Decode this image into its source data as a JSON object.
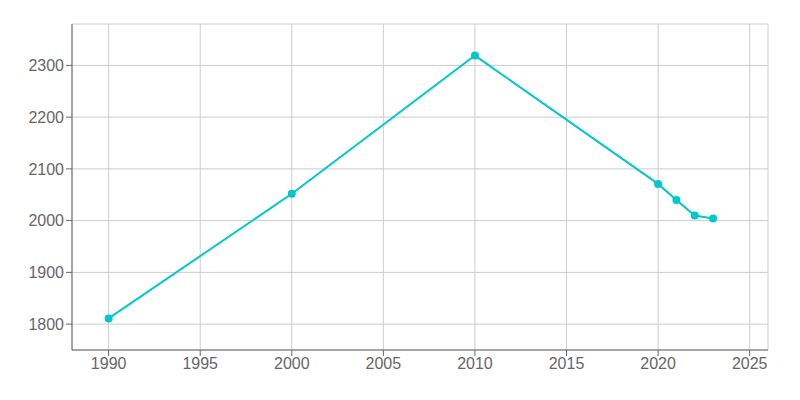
{
  "chart_data": {
    "type": "line",
    "x": [
      1990,
      2000,
      2010,
      2020,
      2021,
      2022,
      2023
    ],
    "values": [
      1811,
      2052,
      2319,
      2071,
      2040,
      2010,
      2004
    ],
    "color": "#00c8cc",
    "marker": "circle",
    "xlim": [
      1988,
      2026
    ],
    "ylim": [
      1750,
      2380
    ],
    "xticks": [
      1990,
      1995,
      2000,
      2005,
      2010,
      2015,
      2020,
      2025
    ],
    "yticks": [
      1800,
      1900,
      2000,
      2100,
      2200,
      2300
    ],
    "grid": true
  }
}
